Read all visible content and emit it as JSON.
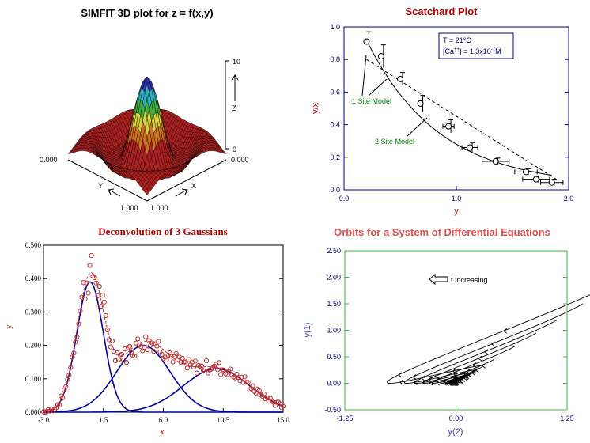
{
  "panels": {
    "surface": {
      "title": "SIMFIT 3D plot for z = f(x,y)",
      "x_label": "X",
      "y_label": "Y",
      "z_label": "Z",
      "z_ticks": [
        "10",
        "0"
      ],
      "corner_labels": {
        "left": "0.000",
        "right": "0.000",
        "bottom_left": "1.000",
        "bottom_right": "1.000"
      }
    },
    "scatchard": {
      "title": "Scatchard Plot",
      "xlabel": "y",
      "ylabel": "y/x",
      "x_ticks": [
        "0.0",
        "1.0",
        "2.0"
      ],
      "y_ticks": [
        "0.0",
        "0.2",
        "0.4",
        "0.6",
        "0.8",
        "1.0"
      ],
      "legend": {
        "line1": "T = 21°C",
        "line2_prefix": "[Ca",
        "line2_sup": "++",
        "line2_mid": "] = 1.3x10",
        "line2_exp": "-7",
        "line2_suffix": "M"
      },
      "annotations": {
        "one_site": "1 Site Model",
        "two_site": "2 Site Model"
      }
    },
    "gauss": {
      "title": "Deconvolution of 3 Gaussians",
      "xlabel": "x",
      "ylabel": "y",
      "x_ticks": [
        "-3.0",
        "1.5",
        "6.0",
        "10.5",
        "15.0"
      ],
      "y_ticks": [
        "0.000",
        "0.100",
        "0.200",
        "0.300",
        "0.400",
        "0.500"
      ]
    },
    "orbits": {
      "title": "Orbits for a System of Differential Equations",
      "xlabel": "y(2)",
      "ylabel": "y(1)",
      "x_ticks": [
        "-1.25",
        "0.00",
        "1.25"
      ],
      "y_ticks": [
        "2.50",
        "2.00",
        "1.50",
        "1.00",
        "0.50",
        "0.00",
        "-0.50"
      ],
      "annotation": "t Increasing"
    }
  },
  "colors": {
    "title_red": "#b00000",
    "title_light_red": "#e05050",
    "axis_blue": "#000080",
    "green_ann": "#008000",
    "green_frame": "#30c030",
    "label_blue": "#4040c0",
    "curve_blue": "#0000a0",
    "marker_red": "#c03030"
  },
  "chart_data": [
    {
      "type": "surface",
      "title": "SIMFIT 3D plot for z = f(x,y)",
      "x_range": [
        0,
        1
      ],
      "y_range": [
        0,
        1
      ],
      "z_range": [
        0,
        10
      ]
    },
    {
      "type": "scatter",
      "title": "Scatchard Plot",
      "xlabel": "y",
      "ylabel": "y/x",
      "xlim": [
        0,
        2
      ],
      "ylim": [
        0,
        1
      ],
      "series": [
        {
          "x": [
            0.2,
            0.33,
            0.5,
            0.68,
            0.93,
            1.12,
            1.35,
            1.62,
            1.71,
            1.85
          ],
          "y": [
            0.91,
            0.82,
            0.68,
            0.53,
            0.39,
            0.26,
            0.175,
            0.11,
            0.065,
            0.045
          ]
        }
      ],
      "annotations": [
        "1 Site Model",
        "2 Site Model"
      ]
    },
    {
      "type": "scatter",
      "title": "Deconvolution of 3 Gaussians",
      "xlabel": "x",
      "ylabel": "y",
      "xlim": [
        -3,
        15
      ],
      "ylim": [
        0,
        0.5
      ],
      "components": [
        {
          "amplitude": 0.39,
          "mean": 0.5,
          "sd": 1.0
        },
        {
          "amplitude": 0.2,
          "mean": 4.5,
          "sd": 2.0
        },
        {
          "amplitude": 0.13,
          "mean": 10.0,
          "sd": 2.5
        }
      ]
    },
    {
      "type": "line",
      "title": "Orbits for a System of Differential Equations",
      "xlabel": "y(2)",
      "ylabel": "y(1)",
      "xlim": [
        -1.25,
        1.25
      ],
      "ylim": [
        -0.5,
        2.5
      ],
      "annotation": "t Increasing"
    }
  ]
}
